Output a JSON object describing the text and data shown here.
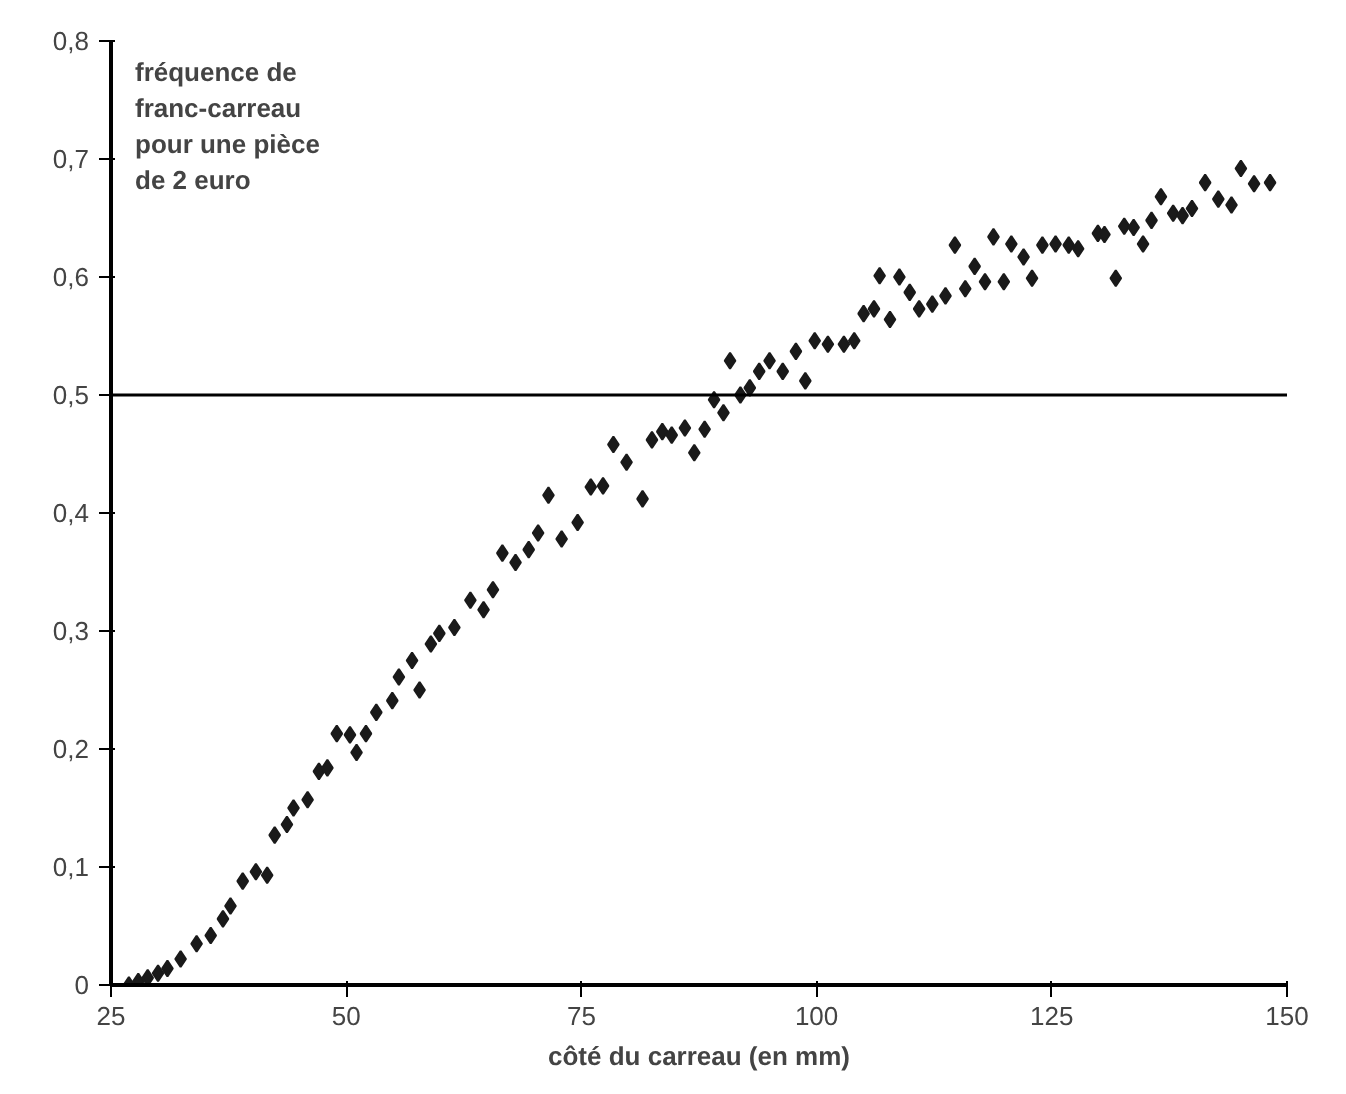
{
  "chart_data": {
    "type": "scatter",
    "xlabel": "côté du carreau (en mm)",
    "ylabel": "fréquence de\nfranc-carreau\npour une pièce\nde 2 euro",
    "x": [
      26.9,
      27.9,
      28.9,
      30.0,
      31.0,
      32.4,
      34.1,
      35.6,
      36.9,
      37.7,
      39.0,
      40.4,
      41.6,
      42.4,
      43.7,
      44.4,
      45.9,
      47.1,
      48.0,
      49.0,
      50.4,
      51.1,
      52.1,
      53.2,
      54.9,
      55.6,
      57.0,
      57.8,
      59.0,
      59.9,
      61.5,
      63.2,
      64.6,
      65.6,
      66.6,
      68.0,
      69.4,
      70.4,
      71.5,
      72.9,
      74.6,
      76.0,
      77.3,
      78.4,
      79.8,
      81.5,
      82.5,
      83.6,
      84.6,
      86.0,
      87.0,
      88.1,
      89.1,
      90.1,
      90.8,
      91.9,
      92.9,
      93.9,
      95.0,
      96.4,
      97.8,
      98.8,
      99.8,
      101.2,
      102.9,
      104.0,
      105.0,
      106.1,
      106.7,
      107.8,
      108.8,
      109.9,
      110.9,
      112.3,
      113.7,
      114.7,
      115.8,
      116.8,
      117.9,
      118.8,
      119.9,
      120.7,
      122.0,
      122.9,
      124.0,
      125.4,
      126.8,
      127.8,
      129.9,
      130.6,
      131.8,
      132.7,
      133.7,
      134.7,
      135.6,
      136.6,
      137.9,
      138.9,
      139.9,
      141.3,
      142.7,
      144.1,
      145.1,
      146.5,
      148.2
    ],
    "values": [
      0.0,
      0.003,
      0.006,
      0.01,
      0.014,
      0.022,
      0.035,
      0.042,
      0.056,
      0.067,
      0.088,
      0.096,
      0.093,
      0.127,
      0.136,
      0.15,
      0.157,
      0.181,
      0.184,
      0.213,
      0.212,
      0.197,
      0.213,
      0.231,
      0.241,
      0.261,
      0.275,
      0.25,
      0.289,
      0.298,
      0.303,
      0.326,
      0.318,
      0.335,
      0.366,
      0.358,
      0.369,
      0.383,
      0.415,
      0.378,
      0.392,
      0.422,
      0.423,
      0.458,
      0.443,
      0.412,
      0.462,
      0.469,
      0.466,
      0.472,
      0.451,
      0.471,
      0.496,
      0.485,
      0.529,
      0.5,
      0.506,
      0.52,
      0.529,
      0.52,
      0.537,
      0.512,
      0.546,
      0.543,
      0.543,
      0.546,
      0.569,
      0.573,
      0.601,
      0.564,
      0.6,
      0.587,
      0.573,
      0.577,
      0.584,
      0.627,
      0.59,
      0.609,
      0.596,
      0.634,
      0.596,
      0.628,
      0.617,
      0.599,
      0.627,
      0.628,
      0.627,
      0.624,
      0.637,
      0.636,
      0.599,
      0.643,
      0.642,
      0.628,
      0.648,
      0.668,
      0.654,
      0.652,
      0.658,
      0.68,
      0.666,
      0.661,
      0.692,
      0.679,
      0.68
    ],
    "color": "#1a1a1a",
    "marker": "diamond",
    "xlim": [
      25,
      150
    ],
    "xticks": [
      25,
      50,
      75,
      100,
      125,
      150
    ],
    "ylim": [
      0,
      0.8
    ],
    "yticks": [
      0,
      {
        "value": 0.1,
        "label": "0,1"
      },
      {
        "value": 0.2,
        "label": "0,2"
      },
      {
        "value": 0.3,
        "label": "0,3"
      },
      {
        "value": 0.4,
        "label": "0,4"
      },
      {
        "value": 0.5,
        "label": "0,5"
      },
      {
        "value": 0.6,
        "label": "0,6"
      },
      {
        "value": 0.7,
        "label": "0,7"
      },
      {
        "value": 0.8,
        "label": "0,8"
      }
    ],
    "ref_lines": [
      {
        "axis": "y",
        "value": 0.5,
        "color": "#000000"
      }
    ],
    "grid": false
  }
}
